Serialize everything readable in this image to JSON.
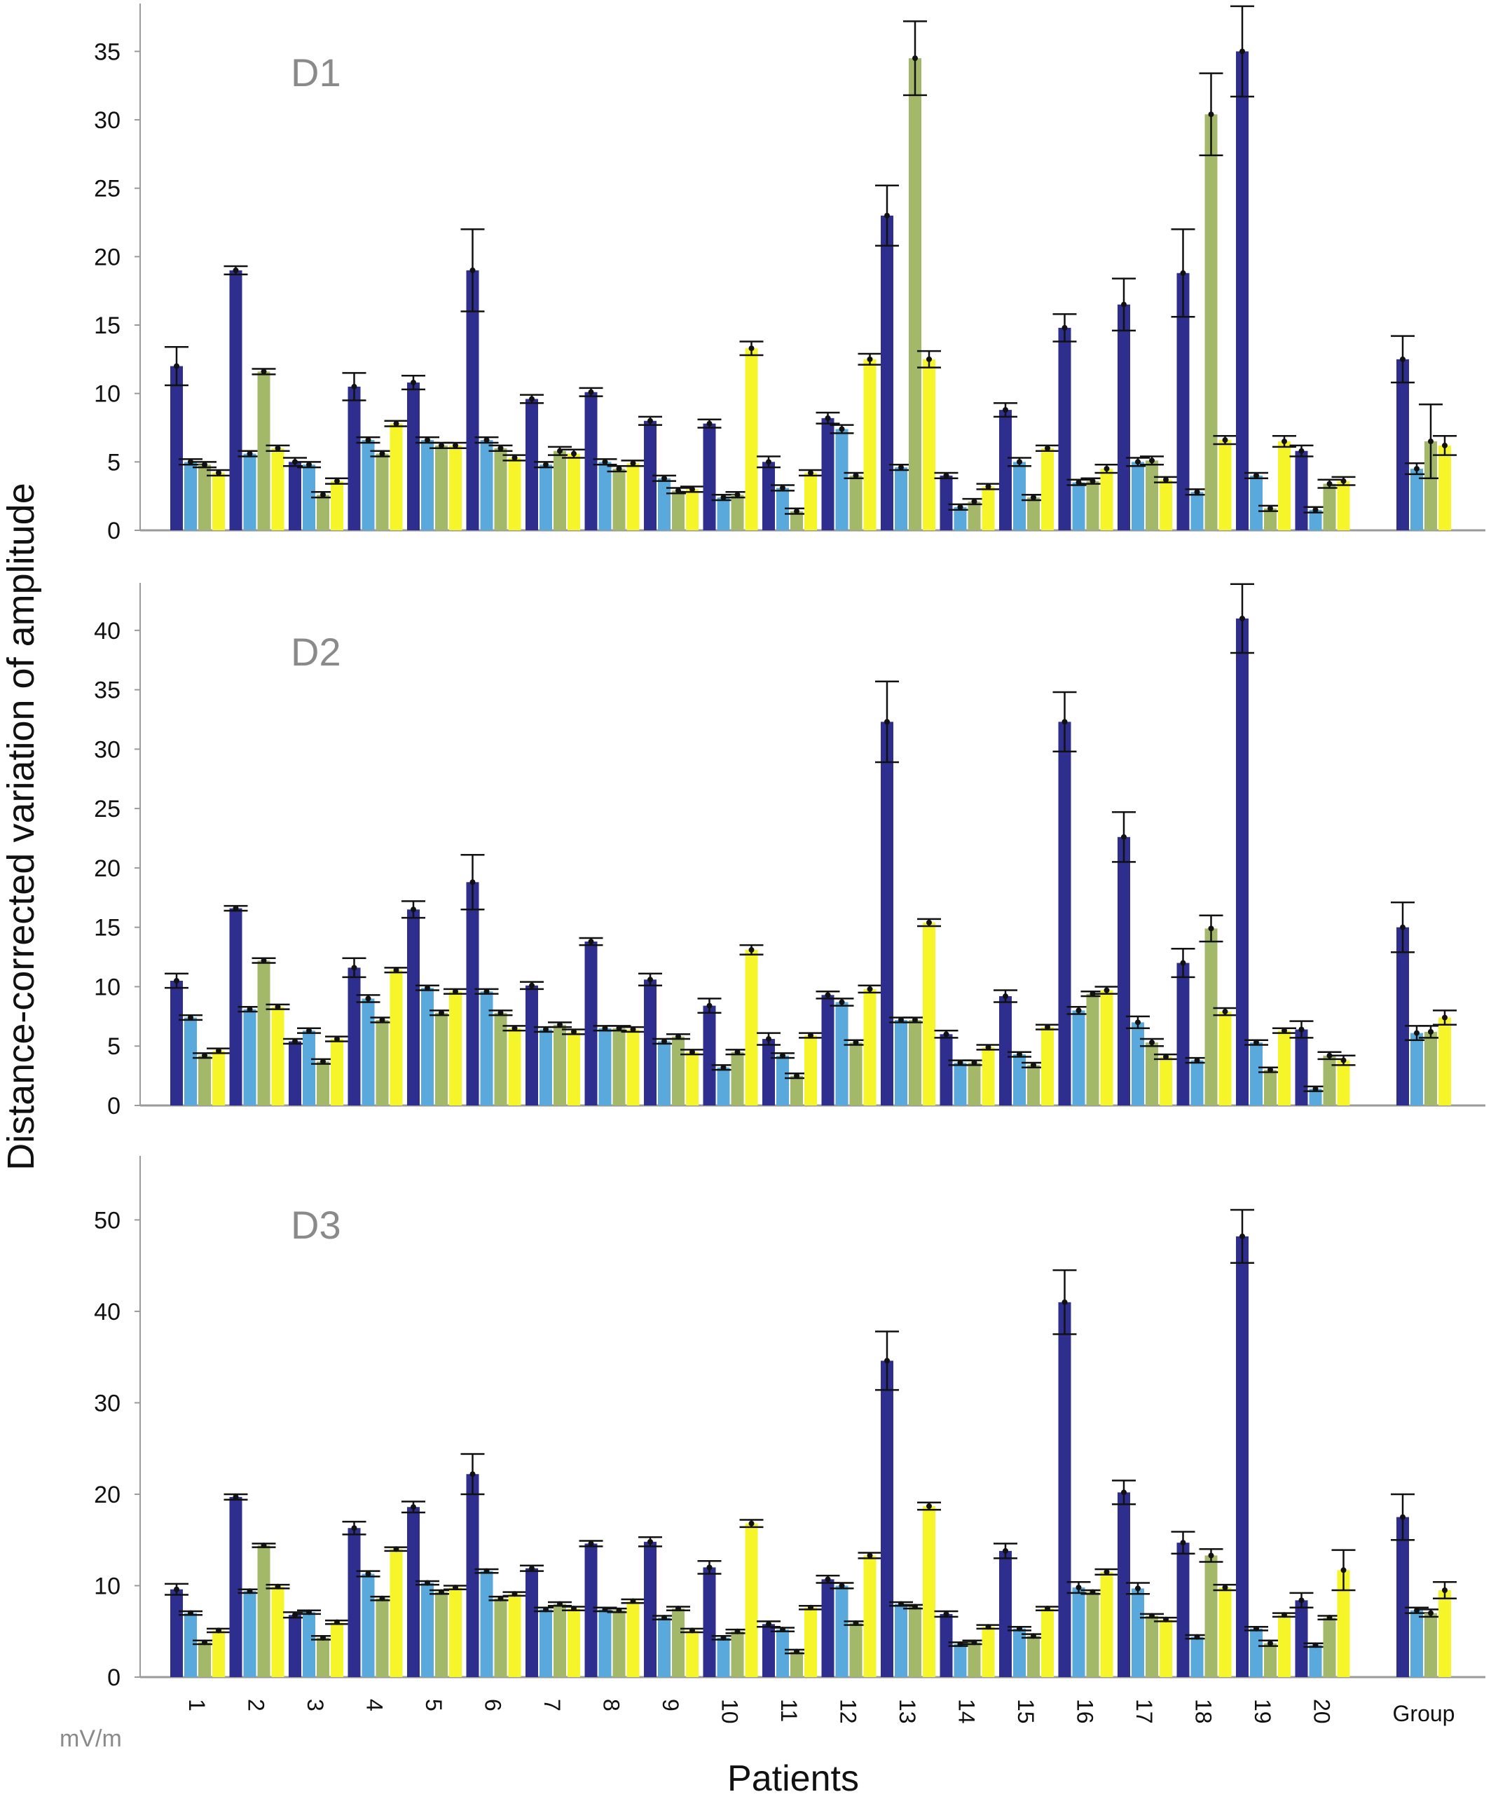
{
  "chart_data": {
    "type": "bar",
    "ylabel": "Distance-corrected variation of amplitude",
    "xlabel": "Patients",
    "unit_label": "mV/m",
    "categories": [
      "1",
      "2",
      "3",
      "4",
      "5",
      "6",
      "7",
      "8",
      "9",
      "10",
      "11",
      "12",
      "13",
      "14",
      "15",
      "16",
      "17",
      "18",
      "19",
      "20",
      "Group"
    ],
    "series_colors": [
      "#2e2e8f",
      "#5aa9dc",
      "#a4b86a",
      "#f5f52a"
    ],
    "panels": [
      {
        "label": "D1",
        "ylim": [
          0,
          38.5
        ],
        "yticks": [
          0,
          5,
          10,
          15,
          20,
          25,
          30,
          35
        ],
        "series": [
          {
            "values": [
              12,
              19,
              5,
              10.5,
              10.8,
              19,
              9.6,
              10.1,
              8,
              7.8,
              5,
              8.2,
              23,
              4,
              8.8,
              14.8,
              16.5,
              18.8,
              35,
              5.8,
              12.5
            ],
            "errors": [
              1.4,
              0.3,
              0.3,
              1,
              0.5,
              3,
              0.3,
              0.3,
              0.3,
              0.3,
              0.4,
              0.4,
              2.2,
              0.2,
              0.5,
              1,
              1.9,
              3.2,
              3.3,
              0.4,
              1.7
            ]
          },
          {
            "values": [
              5,
              5.6,
              4.8,
              6.6,
              6.6,
              6.6,
              4.8,
              5,
              3.8,
              2.4,
              3.1,
              7.4,
              4.6,
              1.7,
              5,
              3.5,
              5,
              2.8,
              4,
              1.5,
              4.5
            ],
            "errors": [
              0.2,
              0.2,
              0.2,
              0.2,
              0.2,
              0.2,
              0.2,
              0.2,
              0.2,
              0.2,
              0.2,
              0.3,
              0.2,
              0.2,
              0.3,
              0.2,
              0.3,
              0.2,
              0.2,
              0.2,
              0.4
            ]
          },
          {
            "values": [
              4.8,
              11.6,
              2.6,
              5.6,
              6.2,
              6,
              5.8,
              4.5,
              2.9,
              2.6,
              1.4,
              4,
              34.5,
              2.1,
              2.4,
              3.6,
              5.1,
              30.4,
              1.6,
              3.4,
              6.5
            ],
            "errors": [
              0.2,
              0.2,
              0.2,
              0.2,
              0.2,
              0.2,
              0.3,
              0.2,
              0.2,
              0.2,
              0.2,
              0.2,
              2.7,
              0.2,
              0.2,
              0.2,
              0.3,
              3,
              0.2,
              0.3,
              2.7
            ]
          },
          {
            "values": [
              4.2,
              6,
              3.6,
              7.8,
              6.2,
              5.3,
              5.6,
              4.9,
              3,
              13.3,
              4.2,
              12.5,
              12.5,
              3.2,
              6,
              4.5,
              3.7,
              6.6,
              6.5,
              3.6,
              6.2
            ],
            "errors": [
              0.2,
              0.2,
              0.2,
              0.2,
              0.2,
              0.2,
              0.3,
              0.2,
              0.2,
              0.5,
              0.2,
              0.4,
              0.6,
              0.2,
              0.2,
              0.3,
              0.2,
              0.3,
              0.4,
              0.3,
              0.7
            ]
          }
        ]
      },
      {
        "label": "D2",
        "ylim": [
          0,
          44
        ],
        "yticks": [
          0,
          5,
          10,
          15,
          20,
          25,
          30,
          35,
          40
        ],
        "series": [
          {
            "values": [
              10.5,
              16.6,
              5.4,
              11.6,
              16.5,
              18.8,
              10.1,
              13.8,
              10.6,
              8.4,
              5.6,
              9.3,
              32.3,
              6,
              9.2,
              32.3,
              22.6,
              12,
              41,
              6.4,
              15
            ],
            "errors": [
              0.6,
              0.2,
              0.2,
              0.8,
              0.7,
              2.3,
              0.3,
              0.3,
              0.5,
              0.6,
              0.5,
              0.3,
              3.4,
              0.3,
              0.5,
              2.5,
              2.1,
              1.2,
              2.9,
              0.7,
              2.1
            ]
          },
          {
            "values": [
              7.4,
              8.1,
              6.3,
              9,
              9.9,
              9.6,
              6.4,
              6.5,
              5.4,
              3.2,
              4.2,
              8.7,
              7.2,
              3.6,
              4.3,
              8,
              7,
              3.8,
              5.3,
              1.4,
              6.1
            ],
            "errors": [
              0.2,
              0.2,
              0.2,
              0.3,
              0.2,
              0.2,
              0.2,
              0.2,
              0.2,
              0.2,
              0.2,
              0.3,
              0.2,
              0.2,
              0.2,
              0.3,
              0.5,
              0.2,
              0.2,
              0.2,
              0.6
            ]
          },
          {
            "values": [
              4.2,
              12.2,
              3.7,
              7.2,
              7.8,
              7.8,
              6.8,
              6.5,
              5.8,
              4.5,
              2.5,
              5.3,
              7.2,
              3.6,
              3.4,
              9.4,
              5.3,
              14.9,
              3,
              4.2,
              6.2
            ],
            "errors": [
              0.2,
              0.2,
              0.2,
              0.2,
              0.2,
              0.2,
              0.2,
              0.2,
              0.2,
              0.2,
              0.2,
              0.2,
              0.2,
              0.2,
              0.2,
              0.2,
              0.3,
              1.1,
              0.2,
              0.3,
              0.5
            ]
          },
          {
            "values": [
              4.6,
              8.3,
              5.6,
              11.4,
              9.6,
              6.5,
              6.2,
              6.4,
              4.5,
              13.1,
              5.9,
              9.8,
              15.4,
              4.9,
              6.6,
              9.7,
              4.1,
              7.9,
              6.3,
              3.8,
              7.4
            ],
            "errors": [
              0.2,
              0.2,
              0.2,
              0.2,
              0.2,
              0.2,
              0.2,
              0.2,
              0.2,
              0.4,
              0.2,
              0.3,
              0.3,
              0.2,
              0.2,
              0.3,
              0.2,
              0.3,
              0.2,
              0.4,
              0.6
            ]
          }
        ]
      },
      {
        "label": "D3",
        "ylim": [
          0,
          57
        ],
        "yticks": [
          0,
          10,
          20,
          30,
          40,
          50
        ],
        "series": [
          {
            "values": [
              9.6,
              19.7,
              6.8,
              16.3,
              18.6,
              22.2,
              11.9,
              14.6,
              14.8,
              12,
              5.8,
              10.7,
              34.6,
              6.9,
              13.8,
              41,
              20.2,
              14.7,
              48.2,
              8.4,
              17.5
            ],
            "errors": [
              0.6,
              0.3,
              0.3,
              0.7,
              0.6,
              2.2,
              0.3,
              0.3,
              0.5,
              0.7,
              0.3,
              0.4,
              3.2,
              0.3,
              0.8,
              3.5,
              1.3,
              1.2,
              2.9,
              0.8,
              2.5
            ]
          },
          {
            "values": [
              7,
              9.4,
              7.1,
              11.3,
              10.3,
              11.6,
              7.4,
              7.4,
              6.5,
              4.3,
              5.2,
              10,
              8,
              3.6,
              5.3,
              9.8,
              9.7,
              4.4,
              5.3,
              3.5,
              7.3
            ],
            "errors": [
              0.2,
              0.2,
              0.2,
              0.3,
              0.2,
              0.2,
              0.2,
              0.2,
              0.2,
              0.2,
              0.2,
              0.3,
              0.2,
              0.2,
              0.2,
              0.6,
              0.6,
              0.2,
              0.2,
              0.2,
              0.3
            ]
          },
          {
            "values": [
              3.8,
              14.4,
              4.3,
              8.6,
              9.3,
              8.6,
              8,
              7.3,
              7.5,
              5,
              2.8,
              5.9,
              7.7,
              3.8,
              4.5,
              9.3,
              6.7,
              13.3,
              3.7,
              6.5,
              7
            ],
            "errors": [
              0.2,
              0.2,
              0.2,
              0.2,
              0.2,
              0.2,
              0.2,
              0.2,
              0.2,
              0.2,
              0.2,
              0.2,
              0.2,
              0.2,
              0.2,
              0.2,
              0.2,
              0.7,
              0.3,
              0.2,
              0.4
            ]
          },
          {
            "values": [
              5.1,
              9.9,
              6,
              14,
              9.8,
              9.1,
              7.5,
              8.3,
              5.1,
              16.8,
              7.6,
              13.3,
              18.7,
              5.5,
              7.5,
              11.5,
              6.3,
              9.8,
              6.8,
              11.7,
              9.5
            ],
            "errors": [
              0.2,
              0.2,
              0.2,
              0.2,
              0.2,
              0.2,
              0.2,
              0.2,
              0.2,
              0.4,
              0.2,
              0.3,
              0.4,
              0.2,
              0.2,
              0.3,
              0.2,
              0.3,
              0.2,
              2.2,
              0.9
            ]
          }
        ]
      }
    ]
  }
}
